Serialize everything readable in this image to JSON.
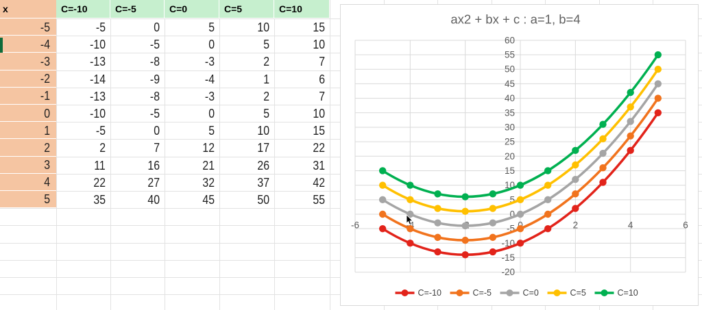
{
  "table": {
    "corner_label": "x",
    "column_headers": [
      "C=-10",
      "C=-5",
      "C=0",
      "C=5",
      "C=10"
    ],
    "x_values": [
      -5,
      -4,
      -3,
      -2,
      -1,
      0,
      1,
      2,
      3,
      4,
      5
    ],
    "rows": [
      [
        -5,
        0,
        5,
        10,
        15
      ],
      [
        -10,
        -5,
        0,
        5,
        10
      ],
      [
        -13,
        -8,
        -3,
        2,
        7
      ],
      [
        -14,
        -9,
        -4,
        1,
        6
      ],
      [
        -13,
        -8,
        -3,
        2,
        7
      ],
      [
        -10,
        -5,
        0,
        5,
        10
      ],
      [
        -5,
        0,
        5,
        10,
        15
      ],
      [
        2,
        7,
        12,
        17,
        22
      ],
      [
        11,
        16,
        21,
        26,
        31
      ],
      [
        22,
        27,
        32,
        37,
        42
      ],
      [
        35,
        40,
        45,
        50,
        55
      ]
    ],
    "x_header_bg": "#F5C5A2",
    "c_header_bg": "#C6EFCE"
  },
  "chart_data": {
    "type": "line",
    "title": "ax2 + bx + c : a=1, b=4",
    "x": [
      -5,
      -4,
      -3,
      -2,
      -1,
      0,
      1,
      2,
      3,
      4,
      5
    ],
    "series": [
      {
        "name": "C=-10",
        "c": -10,
        "color": "#E2231A",
        "values": [
          -5,
          -10,
          -13,
          -14,
          -13,
          -10,
          -5,
          2,
          11,
          22,
          35
        ]
      },
      {
        "name": "C=-5",
        "c": -5,
        "color": "#F1731D",
        "values": [
          0,
          -5,
          -8,
          -9,
          -8,
          -5,
          0,
          7,
          16,
          27,
          40
        ]
      },
      {
        "name": "C=0",
        "c": 0,
        "color": "#A5A5A5",
        "values": [
          5,
          0,
          -3,
          -4,
          -3,
          0,
          5,
          12,
          21,
          32,
          45
        ]
      },
      {
        "name": "C=5",
        "c": 5,
        "color": "#FFC000",
        "values": [
          10,
          5,
          2,
          1,
          2,
          5,
          10,
          17,
          26,
          37,
          50
        ]
      },
      {
        "name": "C=10",
        "c": 10,
        "color": "#00B050",
        "values": [
          15,
          10,
          7,
          6,
          7,
          10,
          15,
          22,
          31,
          42,
          55
        ]
      }
    ],
    "xlim": [
      -6,
      6
    ],
    "x_tick_step": 2,
    "ylim": [
      -20,
      60
    ],
    "y_tick_step": 5,
    "x_tick_labels": [
      "-6",
      "-4",
      "-2",
      "0",
      "2",
      "4",
      "6"
    ],
    "y_tick_labels": [
      "60",
      "55",
      "50",
      "45",
      "40",
      "35",
      "30",
      "25",
      "20",
      "15",
      "10",
      "5",
      "0",
      "-5",
      "-10",
      "-15",
      "-20"
    ],
    "grid": true,
    "legend_position": "bottom",
    "smooth": true,
    "title_color": "#616161",
    "axis_label_color": "#595959",
    "legend_text_color": "#404040",
    "gridline_color": "#D9D9D9"
  }
}
